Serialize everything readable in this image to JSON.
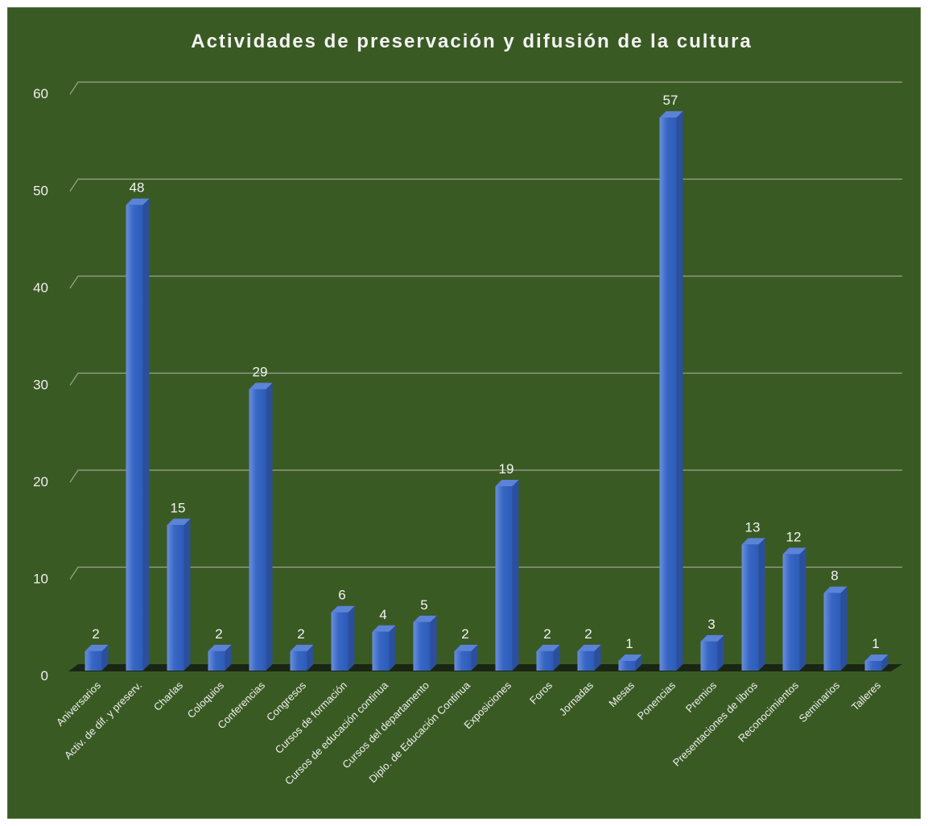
{
  "chart_data": {
    "type": "bar",
    "title": "Actividades de preservación y difusión de la cultura",
    "categories": [
      "Aniversarios",
      "Activ. de dif. y preserv.",
      "Charlas",
      "Coloquios",
      "Conferencias",
      "Congresos",
      "Cursos de formación",
      "Cursos de educación continua",
      "Cursos del departamento",
      "Diplo. de Educación Continua",
      "Exposiciones",
      "Foros",
      "Jornadas",
      "Mesas",
      "Ponencias",
      "Premios",
      "Presentaciones de libros",
      "Reconocimientos",
      "Seminarios",
      "Talleres"
    ],
    "values": [
      2,
      48,
      15,
      2,
      29,
      2,
      6,
      4,
      5,
      2,
      19,
      2,
      2,
      1,
      57,
      3,
      13,
      12,
      8,
      1
    ],
    "ylim": [
      0,
      60
    ],
    "yticks": [
      "0",
      "10",
      "20",
      "30",
      "40",
      "50",
      "60"
    ],
    "grid": true,
    "legend": "none",
    "colors": {
      "background": "#3a5a23",
      "bar_front": "#3766c4",
      "bar_side": "#2c4f9b",
      "bar_top": "#5b83d8",
      "gridline": "#9aa58f",
      "floor": "#1a2613",
      "text": "#f0f0f0"
    }
  }
}
